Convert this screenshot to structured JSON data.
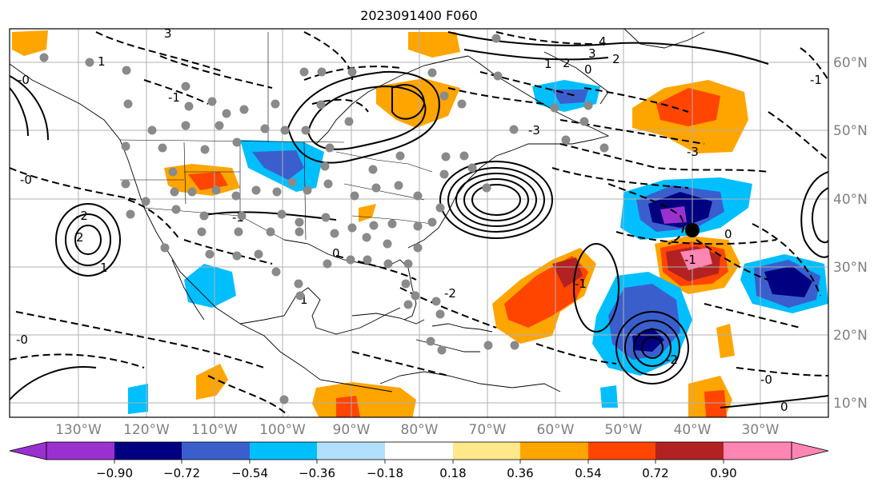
{
  "title": "2023091400 F060",
  "lon_labels": [
    "130°W",
    "120°W",
    "110°W",
    "100°W",
    "90°W",
    "80°W",
    "70°W",
    "60°W",
    "50°W",
    "40°W",
    "30°W"
  ],
  "lat_labels": [
    "60°N",
    "50°N",
    "40°N",
    "30°N",
    "20°N",
    "10°N"
  ],
  "colorbar": {
    "tick_labels": [
      "−0.90",
      "−0.72",
      "−0.54",
      "−0.36",
      "−0.18",
      "0.18",
      "0.36",
      "0.54",
      "0.72",
      "0.90"
    ],
    "colors": [
      "#9b30d0",
      "#000080",
      "#3a5fcd",
      "#00bfff",
      "#b0e0fb",
      "#ffffff",
      "#ffe88a",
      "#ffa500",
      "#ff4500",
      "#b22222",
      "#ff85b3"
    ]
  },
  "contour_labels": [
    "3",
    "4",
    "3",
    "2",
    "2",
    "1",
    "0",
    "-0",
    "-1",
    "1",
    "-1",
    "-3",
    "2",
    "-2",
    "1",
    "1",
    "-1",
    "-0",
    "0",
    "0",
    "-1",
    "-1",
    "-2",
    "-2",
    "-3",
    "-0",
    "-0",
    "0"
  ],
  "station_marker": {
    "lon": -40,
    "lat": 35.5
  }
}
